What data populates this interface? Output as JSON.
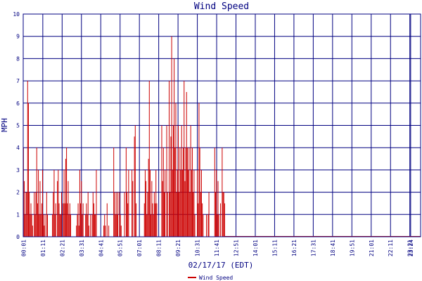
{
  "chart_data": {
    "type": "bar",
    "title": "Wind Speed",
    "xlabel": "02/17/17 (EDT)",
    "ylabel": "MPH",
    "ylim": [
      0,
      10
    ],
    "yticks": [
      "0",
      "1",
      "2",
      "3",
      "4",
      "5",
      "6",
      "7",
      "8",
      "9",
      "10"
    ],
    "xrange_minutes": [
      0,
      1440
    ],
    "xtick_labels": [
      "00:01",
      "01:11",
      "02:21",
      "03:31",
      "04:41",
      "05:51",
      "07:01",
      "08:11",
      "09:21",
      "10:31",
      "11:41",
      "12:51",
      "14:01",
      "15:11",
      "16:21",
      "17:31",
      "18:41",
      "19:51",
      "21:01",
      "22:11",
      "23:21",
      "23:24"
    ],
    "grid": true,
    "legend_position": "bottom-center",
    "colors": {
      "series": "#cc0000",
      "grid": "#000080",
      "text": "#000080",
      "background": "#ffffff"
    },
    "series": [
      {
        "name": "Wind Speed",
        "points": [
          [
            "00:01",
            4
          ],
          [
            "00:04",
            2.5
          ],
          [
            "00:07",
            1
          ],
          [
            "00:10",
            2
          ],
          [
            "00:13",
            2
          ],
          [
            "00:16",
            7
          ],
          [
            "00:19",
            6
          ],
          [
            "00:22",
            2
          ],
          [
            "00:25",
            1
          ],
          [
            "00:28",
            1.5
          ],
          [
            "00:31",
            1
          ],
          [
            "00:34",
            0.5
          ],
          [
            "00:40",
            2
          ],
          [
            "00:43",
            1
          ],
          [
            "00:46",
            2
          ],
          [
            "00:49",
            4
          ],
          [
            "00:52",
            1.5
          ],
          [
            "00:55",
            3
          ],
          [
            "00:58",
            1
          ],
          [
            "01:01",
            2.5
          ],
          [
            "01:04",
            1
          ],
          [
            "01:07",
            1.5
          ],
          [
            "01:10",
            3
          ],
          [
            "01:13",
            1
          ],
          [
            "01:16",
            0.5
          ],
          [
            "01:19",
            1
          ],
          [
            "01:25",
            2
          ],
          [
            "01:28",
            1
          ],
          [
            "01:46",
            1
          ],
          [
            "01:49",
            2
          ],
          [
            "01:52",
            3
          ],
          [
            "01:55",
            1
          ],
          [
            "01:58",
            1.5
          ],
          [
            "02:04",
            2.5
          ],
          [
            "02:07",
            3
          ],
          [
            "02:10",
            1.5
          ],
          [
            "02:13",
            1
          ],
          [
            "02:16",
            1
          ],
          [
            "02:19",
            2
          ],
          [
            "02:25",
            1.5
          ],
          [
            "02:28",
            3
          ],
          [
            "02:31",
            1.5
          ],
          [
            "02:34",
            3.5
          ],
          [
            "02:37",
            4
          ],
          [
            "02:40",
            1.5
          ],
          [
            "02:43",
            2.5
          ],
          [
            "02:46",
            1
          ],
          [
            "02:49",
            1.5
          ],
          [
            "02:52",
            1
          ],
          [
            "03:13",
            0.5
          ],
          [
            "03:16",
            1
          ],
          [
            "03:19",
            1.5
          ],
          [
            "03:22",
            0.5
          ],
          [
            "03:25",
            3
          ],
          [
            "03:28",
            1.5
          ],
          [
            "03:31",
            2.5
          ],
          [
            "03:34",
            1
          ],
          [
            "03:37",
            1.5
          ],
          [
            "03:46",
            1
          ],
          [
            "03:49",
            1.5
          ],
          [
            "03:52",
            1
          ],
          [
            "03:55",
            2
          ],
          [
            "03:58",
            0.5
          ],
          [
            "04:04",
            1
          ],
          [
            "04:10",
            1
          ],
          [
            "04:13",
            2
          ],
          [
            "04:16",
            1.5
          ],
          [
            "04:19",
            1
          ],
          [
            "04:22",
            1
          ],
          [
            "04:25",
            3
          ],
          [
            "04:52",
            0.5
          ],
          [
            "04:55",
            1
          ],
          [
            "04:58",
            0.5
          ],
          [
            "05:04",
            1.5
          ],
          [
            "05:10",
            0.5
          ],
          [
            "05:28",
            4
          ],
          [
            "05:31",
            2
          ],
          [
            "05:34",
            1
          ],
          [
            "05:37",
            2
          ],
          [
            "05:40",
            1
          ],
          [
            "05:43",
            2
          ],
          [
            "05:49",
            2
          ],
          [
            "05:52",
            1
          ],
          [
            "05:55",
            0.5
          ],
          [
            "06:07",
            2
          ],
          [
            "06:13",
            4
          ],
          [
            "06:16",
            2
          ],
          [
            "06:19",
            1.5
          ],
          [
            "06:22",
            3
          ],
          [
            "06:34",
            3
          ],
          [
            "06:37",
            2.5
          ],
          [
            "06:43",
            4.5
          ],
          [
            "06:46",
            5
          ],
          [
            "06:49",
            1.5
          ],
          [
            "07:19",
            1.5
          ],
          [
            "07:22",
            3
          ],
          [
            "07:25",
            2.5
          ],
          [
            "07:28",
            1
          ],
          [
            "07:31",
            2
          ],
          [
            "07:34",
            3.5
          ],
          [
            "07:37",
            7
          ],
          [
            "07:40",
            3
          ],
          [
            "07:43",
            1
          ],
          [
            "07:46",
            2.5
          ],
          [
            "07:49",
            1.5
          ],
          [
            "07:52",
            1
          ],
          [
            "07:55",
            2
          ],
          [
            "07:58",
            1.5
          ],
          [
            "08:01",
            3
          ],
          [
            "08:04",
            1.5
          ],
          [
            "08:22",
            5
          ],
          [
            "08:25",
            2.5
          ],
          [
            "08:28",
            4
          ],
          [
            "08:31",
            2
          ],
          [
            "08:34",
            3
          ],
          [
            "08:40",
            5
          ],
          [
            "08:43",
            2
          ],
          [
            "08:49",
            7
          ],
          [
            "08:52",
            2
          ],
          [
            "08:55",
            4.5
          ],
          [
            "08:58",
            9
          ],
          [
            "09:01",
            3
          ],
          [
            "09:04",
            5
          ],
          [
            "09:07",
            8
          ],
          [
            "09:10",
            4
          ],
          [
            "09:13",
            6
          ],
          [
            "09:16",
            2
          ],
          [
            "09:19",
            3
          ],
          [
            "09:22",
            5
          ],
          [
            "09:25",
            2
          ],
          [
            "09:28",
            4
          ],
          [
            "09:31",
            3
          ],
          [
            "09:34",
            5
          ],
          [
            "09:37",
            3
          ],
          [
            "09:40",
            4
          ],
          [
            "09:43",
            7
          ],
          [
            "09:46",
            2.5
          ],
          [
            "09:49",
            4
          ],
          [
            "09:52",
            6.5
          ],
          [
            "09:55",
            4
          ],
          [
            "09:58",
            3
          ],
          [
            "10:01",
            4
          ],
          [
            "10:04",
            2
          ],
          [
            "10:07",
            5
          ],
          [
            "10:10",
            3
          ],
          [
            "10:13",
            4
          ],
          [
            "10:16",
            2
          ],
          [
            "10:19",
            3
          ],
          [
            "10:22",
            1
          ],
          [
            "10:31",
            3
          ],
          [
            "10:34",
            1.5
          ],
          [
            "10:37",
            6
          ],
          [
            "10:40",
            4
          ],
          [
            "10:43",
            2
          ],
          [
            "10:46",
            3
          ],
          [
            "10:49",
            1.5
          ],
          [
            "10:52",
            1
          ],
          [
            "11:04",
            1
          ],
          [
            "11:10",
            1
          ],
          [
            "11:13",
            2
          ],
          [
            "11:34",
            4
          ],
          [
            "11:37",
            2
          ],
          [
            "11:40",
            3
          ],
          [
            "11:43",
            1
          ],
          [
            "11:46",
            2.5
          ],
          [
            "11:49",
            1
          ],
          [
            "11:55",
            1.5
          ],
          [
            "12:01",
            4
          ],
          [
            "12:04",
            2
          ],
          [
            "12:07",
            2
          ],
          [
            "12:10",
            1.5
          ]
        ]
      }
    ]
  }
}
